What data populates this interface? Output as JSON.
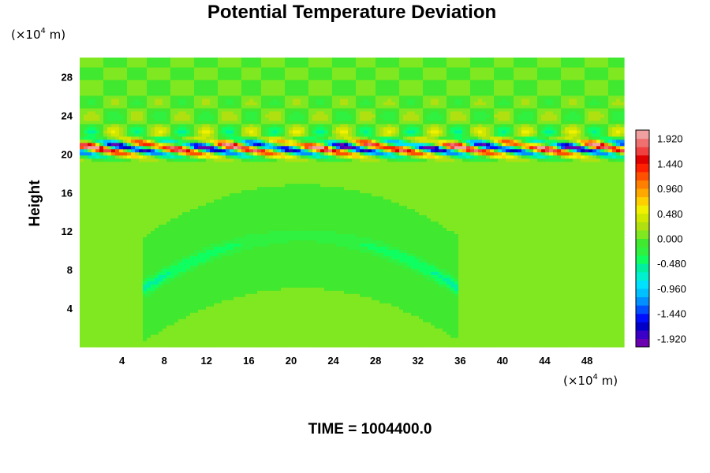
{
  "chart_data": {
    "type": "heatmap",
    "title": "Potential Temperature Deviation",
    "ylabel": "Height",
    "x_unit": {
      "prefix": "(×10",
      "exp": "4",
      "suffix": " m)"
    },
    "y_unit": {
      "prefix": "(×10",
      "exp": "4",
      "suffix": " m)"
    },
    "xlim": [
      0,
      51.5
    ],
    "ylim": [
      0,
      30
    ],
    "x_ticks": [
      "4",
      "8",
      "12",
      "16",
      "20",
      "24",
      "28",
      "32",
      "36",
      "40",
      "44",
      "48"
    ],
    "y_ticks": [
      "4",
      "8",
      "12",
      "16",
      "20",
      "24",
      "28"
    ],
    "colorbar": {
      "min": -2.08,
      "max": 2.08,
      "labels": [
        "1.920",
        "1.440",
        "0.960",
        "0.480",
        "0.000",
        "-0.480",
        "-0.960",
        "-1.440",
        "-1.920"
      ],
      "colors": [
        "#6a00b0",
        "#3a00c8",
        "#0000c8",
        "#0010ff",
        "#0050ff",
        "#0090ff",
        "#00c0ff",
        "#00e0ff",
        "#00f0d0",
        "#00f0a0",
        "#10ff60",
        "#30f040",
        "#40e830",
        "#80e820",
        "#b0e010",
        "#d0e800",
        "#f0f000",
        "#ffd000",
        "#ffa800",
        "#ff8000",
        "#ff5000",
        "#ff2000",
        "#e00000",
        "#f04040",
        "#f07070",
        "#f0a0a0"
      ]
    },
    "background_value": 0.0,
    "features": [
      {
        "kind": "oscillating_band",
        "y_center": 20.6,
        "amplitude": 1.9
      },
      {
        "kind": "wave_field",
        "y_range": [
          20.5,
          30
        ],
        "amplitude": 0.6
      },
      {
        "kind": "arc",
        "x_range": [
          6,
          36
        ],
        "y_peak": 11.5,
        "value": -0.55
      }
    ]
  },
  "time_label": "TIME = 1004400.0"
}
